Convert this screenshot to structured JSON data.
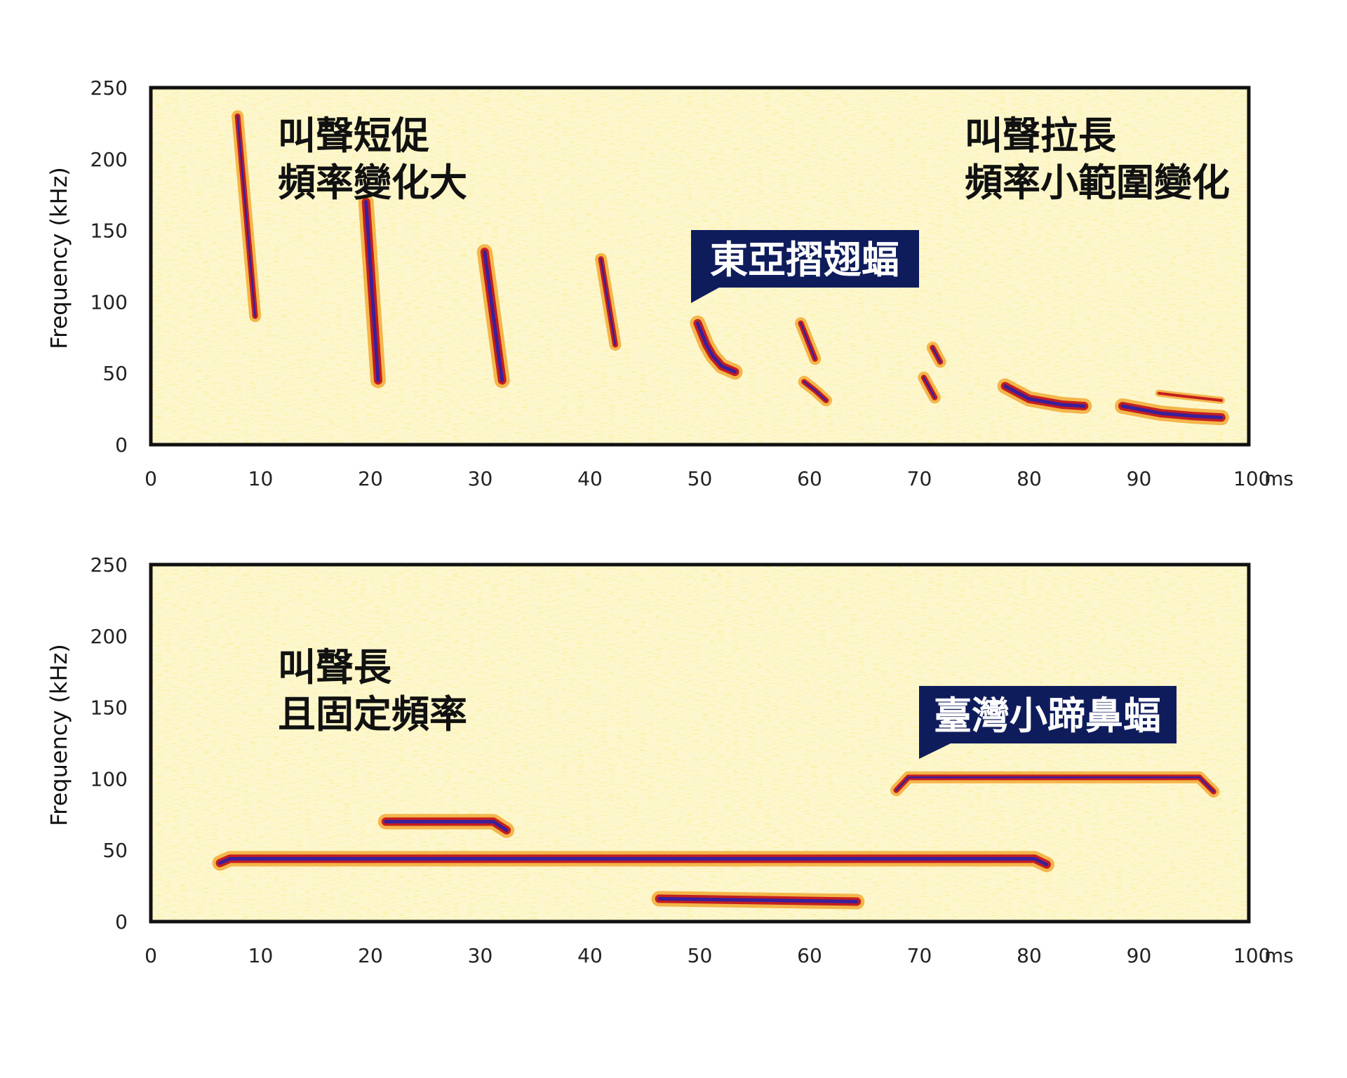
{
  "chart_data": [
    {
      "type": "spectrogram",
      "ylabel": "Frequency (kHz)",
      "xunit": "ms",
      "xlim": [
        0,
        100
      ],
      "ylim": [
        0,
        250
      ],
      "xticks": [
        "0",
        "10",
        "20",
        "30",
        "40",
        "50",
        "60",
        "70",
        "80",
        "90",
        "100"
      ],
      "yticks": [
        "0",
        "50",
        "100",
        "150",
        "200",
        "250"
      ],
      "grid": false,
      "annotations": [
        {
          "lines": [
            "叫聲短促",
            "頻率變化大"
          ]
        },
        {
          "lines": [
            "叫聲拉長",
            "頻率小範圍變化"
          ]
        }
      ],
      "callout": "東亞摺翅蝠",
      "calls": [
        {
          "points": [
            [
              7.9,
              230
            ],
            [
              9.5,
              90
            ]
          ],
          "intensity": "medium"
        },
        {
          "points": [
            [
              19.6,
              170
            ],
            [
              20.7,
              45
            ]
          ],
          "intensity": "high"
        },
        {
          "points": [
            [
              30.4,
              135
            ],
            [
              32.0,
              45
            ]
          ],
          "intensity": "high"
        },
        {
          "points": [
            [
              41.0,
              130
            ],
            [
              42.3,
              70
            ]
          ],
          "intensity": "medium"
        },
        {
          "points": [
            [
              49.8,
              85
            ],
            [
              50.6,
              70
            ],
            [
              51.2,
              62
            ],
            [
              52.0,
              55
            ],
            [
              53.2,
              51
            ]
          ],
          "intensity": "high"
        },
        {
          "points": [
            [
              59.2,
              85
            ],
            [
              60.5,
              60
            ]
          ],
          "intensity": "medium"
        },
        {
          "points": [
            [
              59.5,
              44
            ],
            [
              60.5,
              38
            ],
            [
              61.5,
              31
            ]
          ],
          "intensity": "medium"
        },
        {
          "points": [
            [
              71.2,
              68
            ],
            [
              71.9,
              58
            ]
          ],
          "intensity": "medium"
        },
        {
          "points": [
            [
              70.4,
              47
            ],
            [
              71.4,
              33
            ]
          ],
          "intensity": "medium"
        },
        {
          "points": [
            [
              77.8,
              41
            ],
            [
              80,
              32
            ],
            [
              83,
              28
            ],
            [
              85,
              27
            ]
          ],
          "intensity": "high"
        },
        {
          "points": [
            [
              88.5,
              27
            ],
            [
              92,
              22
            ],
            [
              95,
              20
            ],
            [
              97.5,
              19
            ]
          ],
          "intensity": "high"
        },
        {
          "points": [
            [
              91.8,
              36
            ],
            [
              94,
              34
            ],
            [
              97.5,
              31
            ]
          ],
          "intensity": "low"
        }
      ]
    },
    {
      "type": "spectrogram",
      "ylabel": "Frequency (kHz)",
      "xunit": "ms",
      "xlim": [
        0,
        100
      ],
      "ylim": [
        0,
        250
      ],
      "xticks": [
        "0",
        "10",
        "20",
        "30",
        "40",
        "50",
        "60",
        "70",
        "80",
        "90",
        "100"
      ],
      "yticks": [
        "0",
        "50",
        "100",
        "150",
        "200",
        "250"
      ],
      "grid": false,
      "annotations": [
        {
          "lines": [
            "叫聲長",
            "且固定頻率"
          ]
        }
      ],
      "callout": "臺灣小蹄鼻蝠",
      "calls": [
        {
          "points": [
            [
              6.3,
              41
            ],
            [
              7.2,
              44
            ],
            [
              80.5,
              44
            ],
            [
              81.6,
              40
            ]
          ],
          "intensity": "high"
        },
        {
          "points": [
            [
              21.4,
              70
            ],
            [
              31.2,
              70
            ],
            [
              32.4,
              64
            ]
          ],
          "intensity": "high"
        },
        {
          "points": [
            [
              46.3,
              16
            ],
            [
              64.3,
              14
            ]
          ],
          "intensity": "high"
        },
        {
          "points": [
            [
              67.9,
              92
            ],
            [
              69.0,
              101
            ],
            [
              95.5,
              101
            ],
            [
              96.8,
              91
            ]
          ],
          "intensity": "medium"
        }
      ]
    }
  ],
  "colors": {
    "background": "#fdf7d0",
    "noise": "#f6e16a",
    "signal_outer": "#f0a020",
    "signal_mid": "#c41e1e",
    "signal_core": "#3a1f9a",
    "frame": "#111111",
    "callout_fill": "#0f1c5c"
  }
}
